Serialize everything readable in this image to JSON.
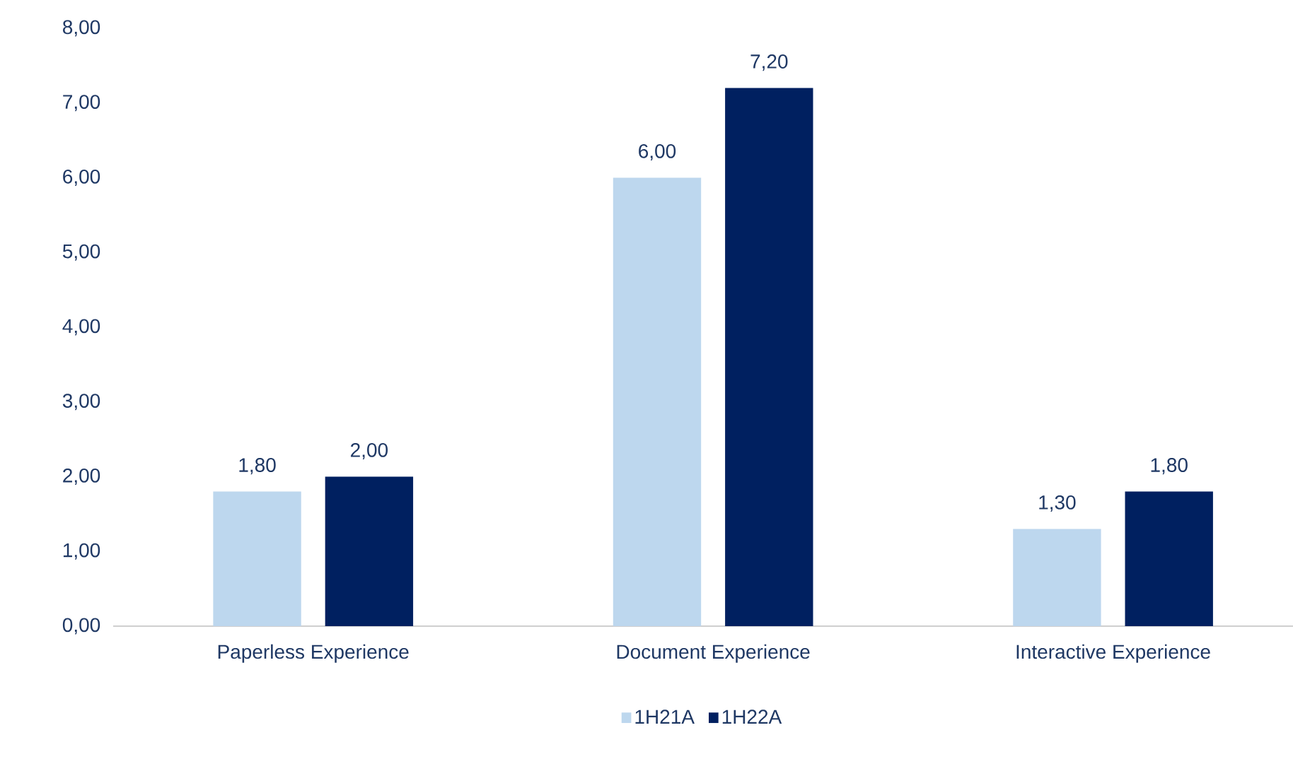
{
  "chart_data": {
    "type": "bar",
    "categories": [
      "Paperless Experience",
      "Document Experience",
      "Interactive Experience"
    ],
    "series": [
      {
        "name": "1H21A",
        "color": "#bdd7ee",
        "values": [
          1.8,
          6.0,
          1.3
        ],
        "value_labels": [
          "1,80",
          "6,00",
          "1,30"
        ]
      },
      {
        "name": "1H22A",
        "color": "#002060",
        "values": [
          2.0,
          7.2,
          1.8
        ],
        "value_labels": [
          "2,00",
          "7,20",
          "1,80"
        ]
      }
    ],
    "ylim": [
      0,
      8
    ],
    "yticks": [
      {
        "value": 0,
        "label": "0,00"
      },
      {
        "value": 1,
        "label": "1,00"
      },
      {
        "value": 2,
        "label": "2,00"
      },
      {
        "value": 3,
        "label": "3,00"
      },
      {
        "value": 4,
        "label": "4,00"
      },
      {
        "value": 5,
        "label": "5,00"
      },
      {
        "value": 6,
        "label": "6,00"
      },
      {
        "value": 7,
        "label": "7,00"
      },
      {
        "value": 8,
        "label": "8,00"
      }
    ],
    "grid": false,
    "legend": "bottom"
  }
}
